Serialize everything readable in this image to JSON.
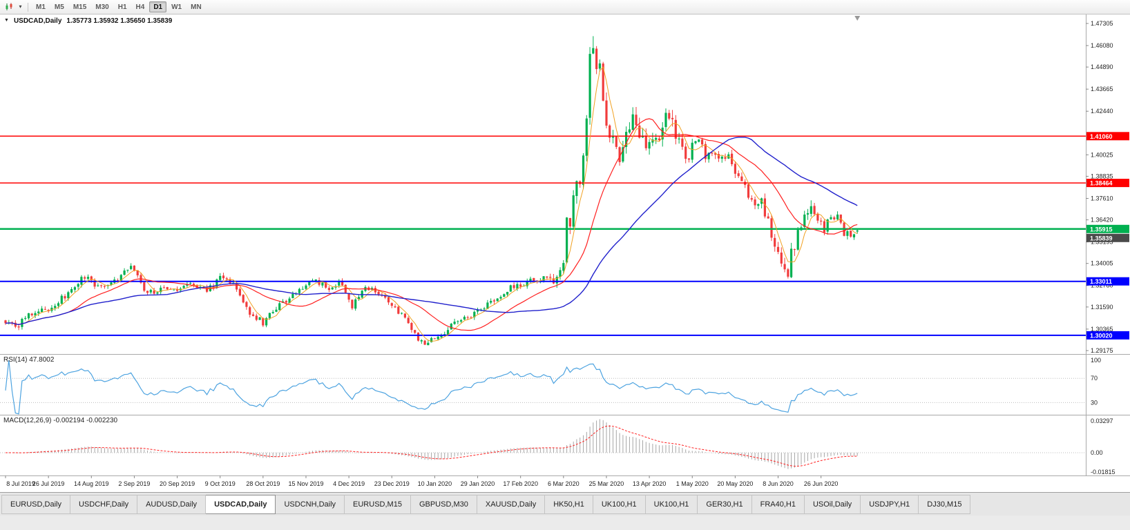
{
  "toolbar": {
    "timeframes": [
      "M1",
      "M5",
      "M15",
      "M30",
      "H1",
      "H4",
      "D1",
      "W1",
      "MN"
    ],
    "active_timeframe": "D1"
  },
  "chart": {
    "title": "USDCAD,Daily",
    "ohlc": "1.35773 1.35932 1.35650 1.35839"
  },
  "indicators": {
    "rsi": {
      "label": "RSI(14) 47.8002",
      "levels": [
        "100",
        "70",
        "30"
      ],
      "level_values": [
        100,
        70,
        30
      ],
      "color": "#4da3e0"
    },
    "macd": {
      "label": "MACD(12,26,9) -0.002194 -0.002230",
      "scale": [
        "0.03297",
        "0.00",
        "-0.01815"
      ],
      "max": 0.03297,
      "min": -0.01815,
      "histogram_color": "#a6a6a6",
      "signal_color": "#ff2020"
    }
  },
  "chart_data": {
    "type": "candlestick",
    "symbol": "USDCAD",
    "period": "Daily",
    "price_axis": {
      "max": 1.47305,
      "min": 1.29175,
      "ticks": [
        "1.47305",
        "1.46080",
        "1.44890",
        "1.43665",
        "1.42440",
        "1.40025",
        "1.38835",
        "1.37610",
        "1.36420",
        "1.35195",
        "1.34005",
        "1.32780",
        "1.31590",
        "1.30365",
        "1.29175"
      ]
    },
    "date_labels": [
      "8 Jul 2019",
      "26 Jul 2019",
      "14 Aug 2019",
      "2 Sep 2019",
      "20 Sep 2019",
      "9 Oct 2019",
      "28 Oct 2019",
      "15 Nov 2019",
      "4 Dec 2019",
      "23 Dec 2019",
      "10 Jan 2020",
      "29 Jan 2020",
      "17 Feb 2020",
      "6 Mar 2020",
      "25 Mar 2020",
      "13 Apr 2020",
      "1 May 2020",
      "20 May 2020",
      "8 Jun 2020",
      "26 Jun 2020"
    ],
    "candle_count": 259,
    "candles_per_label": 13,
    "price_path": [
      [
        0,
        1.3085
      ],
      [
        3,
        1.3045
      ],
      [
        8,
        1.3125
      ],
      [
        13,
        1.315
      ],
      [
        18,
        1.322
      ],
      [
        24,
        1.333
      ],
      [
        28,
        1.3265
      ],
      [
        33,
        1.331
      ],
      [
        38,
        1.3375
      ],
      [
        43,
        1.3235
      ],
      [
        48,
        1.327
      ],
      [
        52,
        1.3245
      ],
      [
        57,
        1.329
      ],
      [
        61,
        1.3245
      ],
      [
        65,
        1.332
      ],
      [
        69,
        1.33
      ],
      [
        74,
        1.313
      ],
      [
        78,
        1.307
      ],
      [
        83,
        1.317
      ],
      [
        88,
        1.3235
      ],
      [
        93,
        1.33
      ],
      [
        98,
        1.327
      ],
      [
        102,
        1.329
      ],
      [
        105,
        1.3165
      ],
      [
        109,
        1.327
      ],
      [
        113,
        1.324
      ],
      [
        117,
        1.3165
      ],
      [
        121,
        1.309
      ],
      [
        125,
        1.298
      ],
      [
        128,
        1.2958
      ],
      [
        132,
        1.301
      ],
      [
        137,
        1.3075
      ],
      [
        143,
        1.3135
      ],
      [
        148,
        1.32
      ],
      [
        153,
        1.3265
      ],
      [
        158,
        1.33
      ],
      [
        163,
        1.332
      ],
      [
        166,
        1.328
      ],
      [
        169,
        1.342
      ],
      [
        170,
        1.366
      ],
      [
        171,
        1.362
      ],
      [
        172,
        1.373
      ],
      [
        173,
        1.3815
      ],
      [
        174,
        1.38
      ],
      [
        175,
        1.398
      ],
      [
        176,
        1.424
      ],
      [
        177,
        1.451
      ],
      [
        178,
        1.462
      ],
      [
        179,
        1.443
      ],
      [
        180,
        1.448
      ],
      [
        181,
        1.432
      ],
      [
        182,
        1.419
      ],
      [
        184,
        1.409
      ],
      [
        186,
        1.401
      ],
      [
        188,
        1.413
      ],
      [
        190,
        1.418
      ],
      [
        192,
        1.415
      ],
      [
        194,
        1.402
      ],
      [
        196,
        1.406
      ],
      [
        198,
        1.412
      ],
      [
        200,
        1.42
      ],
      [
        201,
        1.4245
      ],
      [
        203,
        1.41
      ],
      [
        205,
        1.401
      ],
      [
        207,
        1.396
      ],
      [
        208,
        1.406
      ],
      [
        210,
        1.409
      ],
      [
        212,
        1.399
      ],
      [
        214,
        1.403
      ],
      [
        216,
        1.398
      ],
      [
        218,
        1.3995
      ],
      [
        220,
        1.396
      ],
      [
        221,
        1.392
      ],
      [
        223,
        1.387
      ],
      [
        225,
        1.378
      ],
      [
        227,
        1.3725
      ],
      [
        229,
        1.377
      ],
      [
        231,
        1.362
      ],
      [
        233,
        1.35
      ],
      [
        234,
        1.343
      ],
      [
        236,
        1.34
      ],
      [
        237,
        1.336
      ],
      [
        238,
        1.347
      ],
      [
        240,
        1.356
      ],
      [
        242,
        1.366
      ],
      [
        244,
        1.3725
      ],
      [
        246,
        1.365
      ],
      [
        248,
        1.359
      ],
      [
        250,
        1.3675
      ],
      [
        252,
        1.365
      ],
      [
        254,
        1.3565
      ],
      [
        255,
        1.359
      ],
      [
        256,
        1.354
      ],
      [
        257,
        1.3555
      ],
      [
        258,
        1.3584
      ]
    ],
    "overrides": [
      {
        "i": 128,
        "l": 1.2951
      },
      {
        "i": 178,
        "h": 1.466
      },
      {
        "i": 237,
        "l": 1.3317
      },
      {
        "i": 258,
        "o": 1.35773,
        "h": 1.35932,
        "l": 1.3565,
        "c": 1.35839
      }
    ],
    "levels": [
      {
        "label": "1.41060",
        "price": 1.4106,
        "color": "#ff0000",
        "width": 1.5
      },
      {
        "label": "1.38464",
        "price": 1.38464,
        "color": "#ff0000",
        "width": 1.5
      },
      {
        "label": "1.35915",
        "price": 1.35915,
        "color": "#00b050",
        "width": 2.5
      },
      {
        "label": "1.33011",
        "price": 1.33011,
        "color": "#0000ff",
        "width": 2
      },
      {
        "label": "1.30020",
        "price": 1.3002,
        "color": "#0000ff",
        "width": 2
      }
    ],
    "current_price": {
      "label": "1.35839",
      "price": 1.35839,
      "bg": "#4a4a4a"
    },
    "colors": {
      "up": "#00b050",
      "down": "#f13c3c",
      "ma_fast": "#f0a020",
      "ma_mid": "#ff2020",
      "ma_slow": "#2020cc"
    },
    "ma_periods": {
      "fast": 5,
      "mid": 20,
      "slow": 50
    }
  },
  "tabs": {
    "items": [
      "EURUSD,Daily",
      "USDCHF,Daily",
      "AUDUSD,Daily",
      "USDCAD,Daily",
      "USDCNH,Daily",
      "EURUSD,M15",
      "GBPUSD,M30",
      "XAUUSD,Daily",
      "HK50,H1",
      "UK100,H1",
      "UK100,H1",
      "GER30,H1",
      "FRA40,H1",
      "USOil,Daily",
      "USDJPY,H1",
      "DJ30,M15"
    ],
    "active": "USDCAD,Daily"
  }
}
